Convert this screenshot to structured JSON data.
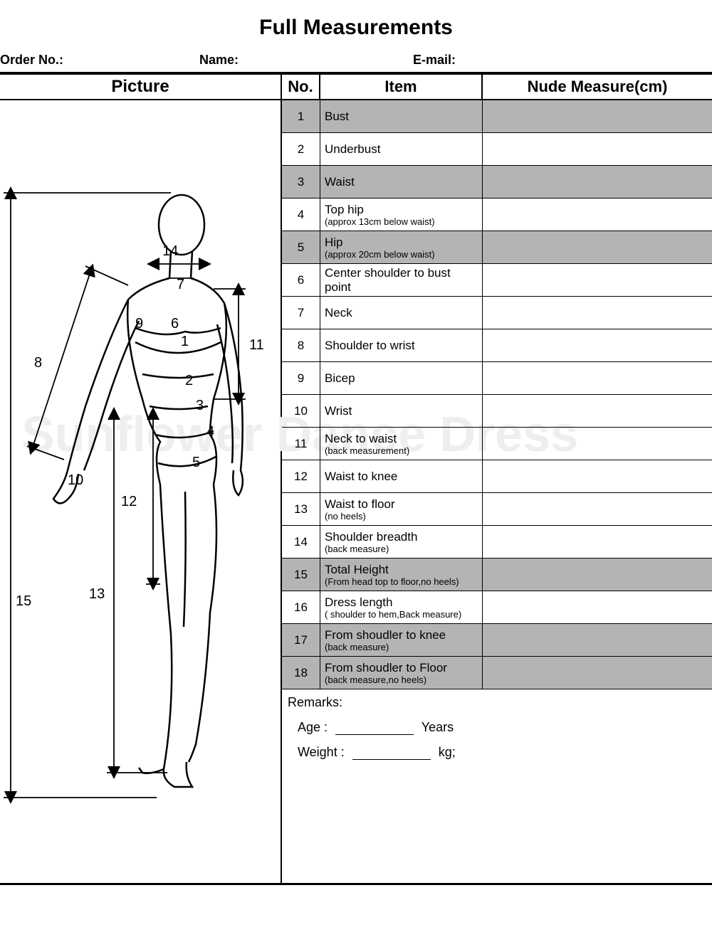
{
  "title": "Full Measurements",
  "info": {
    "order_label": "Order No.:",
    "name_label": "Name:",
    "email_label": "E-mail:"
  },
  "headers": {
    "picture": "Picture",
    "no": "No.",
    "item": "Item",
    "measure": "Nude Measure(cm)"
  },
  "rows": [
    {
      "no": "1",
      "item": "Bust",
      "sub": "",
      "shaded": true
    },
    {
      "no": "2",
      "item": "Underbust",
      "sub": "",
      "shaded": false
    },
    {
      "no": "3",
      "item": "Waist",
      "sub": "",
      "shaded": true
    },
    {
      "no": "4",
      "item": "Top hip",
      "sub": "(approx 13cm below waist)",
      "shaded": false
    },
    {
      "no": "5",
      "item": "Hip",
      "sub": "(approx 20cm below waist)",
      "shaded": true
    },
    {
      "no": "6",
      "item": " Center shoulder to bust point",
      "sub": "",
      "shaded": false
    },
    {
      "no": "7",
      "item": "Neck",
      "sub": "",
      "shaded": false
    },
    {
      "no": "8",
      "item": "Shoulder to wrist",
      "sub": "",
      "shaded": false
    },
    {
      "no": "9",
      "item": "Bicep",
      "sub": "",
      "shaded": false
    },
    {
      "no": "10",
      "item": "Wrist",
      "sub": "",
      "shaded": false
    },
    {
      "no": "11",
      "item": "Neck to waist",
      "sub": "(back measurement)",
      "shaded": false
    },
    {
      "no": "12",
      "item": "Waist to knee",
      "sub": "",
      "shaded": false
    },
    {
      "no": "13",
      "item": "Waist to floor",
      "sub": "(no heels)",
      "shaded": false
    },
    {
      "no": "14",
      "item": "Shoulder breadth",
      "sub": "(back measure)",
      "shaded": false
    },
    {
      "no": "15",
      "item": "Total Height",
      "sub": "(From head top to floor,no heels)",
      "shaded": true
    },
    {
      "no": "16",
      "item": "Dress length",
      "sub": "( shoulder to hem,Back measure)",
      "shaded": false
    },
    {
      "no": "17",
      "item": "From shoudler to knee",
      "sub": "(back measure)",
      "shaded": true
    },
    {
      "no": "18",
      "item": "From shoudler to Floor",
      "sub": "(back measure,no heels)",
      "shaded": true
    }
  ],
  "remarks": {
    "label": "Remarks:",
    "age_label": "Age  :",
    "age_unit": "Years",
    "weight_label": "Weight :",
    "weight_unit": "kg;"
  },
  "watermark": "Sunflower Dance Dress",
  "figure_labels": {
    "l1": "1",
    "l2": "2",
    "l3": "3",
    "l4": "4",
    "l5": "5",
    "l6": "6",
    "l7": "7",
    "l8": "8",
    "l9": "9",
    "l10": "10",
    "l11": "11",
    "l12": "12",
    "l13": "13",
    "l14": "14",
    "l15": "15"
  }
}
